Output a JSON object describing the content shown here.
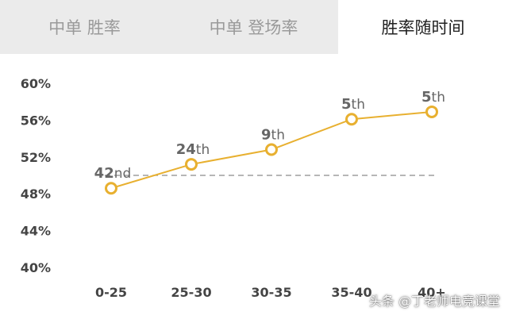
{
  "tabs": [
    {
      "label": "中单 胜率",
      "active": false
    },
    {
      "label": "中单 登场率",
      "active": false
    },
    {
      "label": "胜率随时间",
      "active": true
    }
  ],
  "chart_data": {
    "type": "line",
    "categories": [
      "0-25",
      "25-30",
      "30-35",
      "35-40",
      "40+"
    ],
    "values": [
      48.6,
      51.2,
      52.8,
      56.1,
      56.9
    ],
    "point_labels": [
      "42nd",
      "24th",
      "9th",
      "5th",
      "5th"
    ],
    "y_ticks": [
      "60%",
      "56%",
      "52%",
      "48%",
      "44%",
      "40%"
    ],
    "ylim": [
      40,
      60
    ],
    "reference_line": 50,
    "line_color": "#e8b030",
    "grid": false
  },
  "watermark": "头条 @丁老师电竞课堂"
}
